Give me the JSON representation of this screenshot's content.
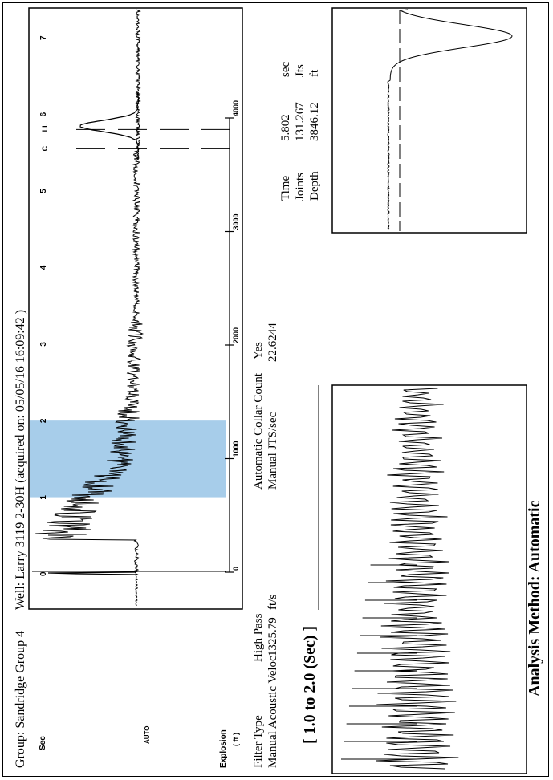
{
  "header": {
    "group": "Group: Sandridge Group 4",
    "well": "Well: Larry 3119 2-30H (acquired on: 05/05/16 16:09:42 )"
  },
  "settings": {
    "filter_type_label": "Filter Type",
    "filter_type_value": "High Pass",
    "velocity_label": "Manual Acoustic Veloc",
    "velocity_value": "1325.79",
    "velocity_unit": "ft/s",
    "collar_label": "Automatic Collar Count",
    "collar_value": "Yes",
    "jts_label": "Manual JTS/sec",
    "jts_value": "22.6244"
  },
  "results": {
    "time_label": "Time",
    "time_value": "5.802",
    "time_unit": "sec",
    "joints_label": "Joints",
    "joints_value": "131.267",
    "joints_unit": "Jts",
    "depth_label": "Depth",
    "depth_value": "3846.12",
    "depth_unit": "ft"
  },
  "collar_window_title": "[ 1.0  to  2.0 (Sec) ]",
  "analysis_method": "Analysis Method:  Automatic",
  "colors": {
    "selection": "#a7cdea",
    "trace": "#000000"
  },
  "chart_data": {
    "type": "line",
    "title": "",
    "time_label": "Sec",
    "depth_label": "( ft )",
    "time_ticks": [
      "0",
      "1",
      "2",
      "3",
      "4",
      "5",
      "6",
      "7"
    ],
    "time_range": [
      0,
      7.3
    ],
    "depth_ticks": [
      "0",
      "1000",
      "2000",
      "3000",
      "4000"
    ],
    "selection_range_sec": [
      1.0,
      2.0
    ],
    "markers": [
      {
        "label": "C",
        "time_sec": 5.55
      },
      {
        "label": "LL",
        "time_sec": 5.802
      }
    ],
    "annotations": {
      "explosion": "Explosion",
      "amplitude": "AUTO"
    }
  }
}
